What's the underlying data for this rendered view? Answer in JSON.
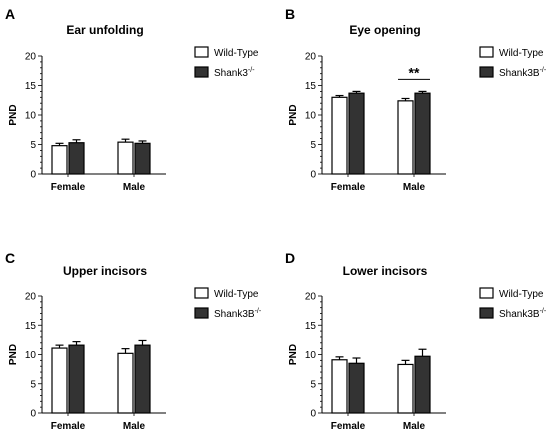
{
  "chart_data": [
    {
      "panel": "A",
      "type": "bar",
      "title": "Ear unfolding",
      "ylabel": "PND",
      "ylim": [
        0,
        20
      ],
      "yticks": [
        "0",
        "5",
        "10",
        "15",
        "20"
      ],
      "categories": [
        "Female",
        "Male"
      ],
      "series": [
        {
          "name": "Wild-Type",
          "values": [
            4.8,
            5.4
          ],
          "errors": [
            0.4,
            0.5
          ],
          "fill": "#ffffff"
        },
        {
          "name": "Shank3",
          "superscript": "-/-",
          "values": [
            5.3,
            5.2
          ],
          "errors": [
            0.5,
            0.4
          ],
          "fill": "#333333"
        }
      ],
      "annotations": []
    },
    {
      "panel": "B",
      "type": "bar",
      "title": "Eye opening",
      "ylabel": "PND",
      "ylim": [
        0,
        20
      ],
      "yticks": [
        "0",
        "5",
        "10",
        "15",
        "20"
      ],
      "categories": [
        "Female",
        "Male"
      ],
      "series": [
        {
          "name": "Wild-Type",
          "values": [
            13.0,
            12.4
          ],
          "errors": [
            0.3,
            0.4
          ],
          "fill": "#ffffff"
        },
        {
          "name": "Shank3B",
          "superscript": "-/-",
          "values": [
            13.7,
            13.7
          ],
          "errors": [
            0.3,
            0.3
          ],
          "fill": "#333333"
        }
      ],
      "annotations": [
        {
          "text": "**",
          "category": 1
        }
      ]
    },
    {
      "panel": "C",
      "type": "bar",
      "title": "Upper incisors",
      "ylabel": "PND",
      "ylim": [
        0,
        20
      ],
      "yticks": [
        "0",
        "5",
        "10",
        "15",
        "20"
      ],
      "categories": [
        "Female",
        "Male"
      ],
      "series": [
        {
          "name": "Wild-Type",
          "values": [
            11.1,
            10.2
          ],
          "errors": [
            0.5,
            0.8
          ],
          "fill": "#ffffff"
        },
        {
          "name": "Shank3B",
          "superscript": "-/-",
          "values": [
            11.6,
            11.6
          ],
          "errors": [
            0.6,
            0.8
          ],
          "fill": "#333333"
        }
      ],
      "annotations": []
    },
    {
      "panel": "D",
      "type": "bar",
      "title": "Lower incisors",
      "ylabel": "PND",
      "ylim": [
        0,
        20
      ],
      "yticks": [
        "0",
        "5",
        "10",
        "15",
        "20"
      ],
      "categories": [
        "Female",
        "Male"
      ],
      "series": [
        {
          "name": "Wild-Type",
          "values": [
            9.1,
            8.3
          ],
          "errors": [
            0.5,
            0.7
          ],
          "fill": "#ffffff"
        },
        {
          "name": "Shank3B",
          "superscript": "-/-",
          "values": [
            8.5,
            9.7
          ],
          "errors": [
            0.9,
            1.2
          ],
          "fill": "#333333"
        }
      ],
      "annotations": []
    }
  ]
}
